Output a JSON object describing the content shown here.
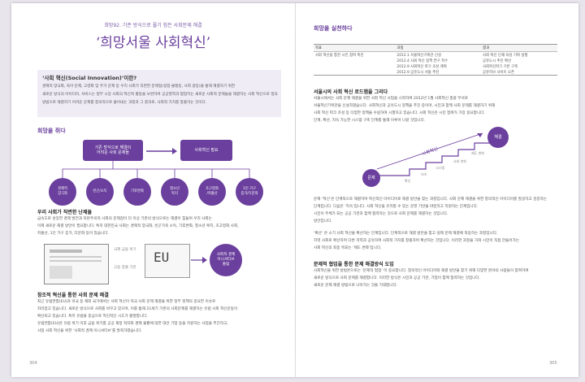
{
  "left_page": {
    "kicker": "희망92. 기존 방식으로 풀기 힘든 사회문제 해결",
    "title": "‘희망서울 사회혁신’",
    "box": {
      "heading": "‘사회 혁신(Social Innovation)’이란?",
      "lines": [
        "경제적 양극화, 육아 문제, 고령화 및 주거 문제 등 우리 사회가 직면한 문제점(실업·불평등, 사회 갈등)을 통해 해결하기 위한",
        "새로운 방식의 아이디어, 서비스는 정부 시장 사회의 혁신적 활동을 보완하며 공공영역과 협업하는 새로운 사회적 문제들을 해결하는 사회 혁신으로 정의한다.",
        "방법으로 해결하기 어려운 문제를 창의적으로 풀어내는 과정과 그 결과로, 사회적 가치를 창출하는 것이다."
      ]
    },
    "section1": "희망을 쥐다",
    "diagram": {
      "left_pill": "기존 방식으로 해결이\n어려운 사회 문제들",
      "right_pill": "사회혁신 필요",
      "circles": [
        "경제적\n양극화",
        "빈곤/소득",
        "기후변화",
        "청소년\n복지",
        "초고령화\n/저출산",
        "1인 가구\n증가/다문화"
      ]
    },
    "sub1": "우리 사회가 직면한 난제들",
    "sub1_lines": [
      "급속도로 성장한 경제 발전과 자본주의적 사회의 문제점이 더 이상 기존의 방식으로는 해결이 힘들며 우리 사회는",
      "이제 새로운 해결 방안이 필요합니다. 특히 대한민국 사회는 경제적 양극화, 빈곤가족 소득, 기후변화, 청소년 복지, 초고령화 사회,",
      "저출산, 1인 가구 증가, 다문화 등이 있습니다."
    ],
    "sketch_labels": [
      "국제 금융 위기",
      "EU",
      "고용 창출 기반"
    ],
    "bigcircle": "사회적 경제\n이니셔티브\n출범",
    "sub2": "창조적 혁신을 통한 사회 문제 해결",
    "sub2_lines": [
      "최근 유럽연합(EU)과 미국 등 해외 국가에서는 사회 혁신이 적극 사회 문제 해결을 위한 정부 정책의 중요한 이슈로",
      "자리잡고 있습니다. 새로운 방식으로 사회를 바꾸고 있으며, 이를 통해 21세기 기존의 사회문제를 해결하는 유럽 사회 혁신운동이",
      "확산되고 있습니다. 특히 유럽을 중심으로 혁신적인 시도가 활발합니다.",
      "유럽연합(EU)은 유럽 위기 이후 금융 위기를 공공 재정 적자와 경제 불황에 대한 대안 기업 등을 지원하는 사업을 추진하고,",
      "사업 사회 혁신을 위한 ‘사회적 경제 이니셔티브’를 발족하였습니다."
    ],
    "page_num": "304"
  },
  "right_page": {
    "section1": "희망을 실천하다",
    "table": {
      "headers": [
        "목표",
        "과정",
        "결과"
      ],
      "rows": [
        [
          "사회 혁신을 통한 시민 참여 촉진",
          "2012.1  서울혁신기획관 신설",
          "사회 혁신 인재 육성 기획 실행"
        ],
        [
          "",
          "2012.4  사회 혁신 정책 연구 착수",
          "공유도시 추진 확산"
        ],
        [
          "",
          "2012.9  사회혁신 파크 조성 계획",
          "사회혁신파크 기반 구축"
        ],
        [
          "",
          "2012.9  공유도시 서울 추진",
          "공유허브 사이트 오픈"
        ]
      ]
    },
    "sub1": "서울시의 사회 혁신 로드맵을 그리다",
    "sub1_lines": [
      "서울시에서는 사회 문제 해결을 위한 사회 혁신 사업을 시작하여 2012년 1월 사회혁신 총괄 부서로",
      "서울혁신기획관을 신설하였습니다. 사회혁신과 공유도시 정책을 추진 중이며, 시민과 함께 사회 문제를 해결하기 위해",
      "사회 혁신 파크 조성 등 다양한 정책을 수립하여 시행하고 있습니다. 사회 혁신은 시민 참여가 가장 중요합니다.",
      "단계, 확산, 지속 가능한 시스템 구축 단계를 통해 이루어 나갈 것입니다."
    ],
    "stair": {
      "top_circle": "해결",
      "bottom_circle": "문제",
      "arrow_label": "사회혁신",
      "steps": [
        "확산",
        "지속",
        "시스템",
        "사회 변화",
        "제도 변화"
      ]
    },
    "sub1b_lines": [
      "문제 ‘혁신’은 단계적으로 해결하며 혁신적인 아이디어로 해결 방안을 찾는 과정입니다. 사회 문제 해결을 위한 창의적인 아이디어를 발굴하고 검증하는",
      "단계입니다. 다음은 ‘지속’입니다. 사회 혁신을 유지할 수 있는 운영 기반을 마련하고 지원하는 단계입니다.",
      "시민이 주체가 되는 공공 기관과 함께 협력하는 것으로 사회 문제를 해결하는 것입니다.",
      "방안입니다."
    ],
    "sub1c_lines": [
      "‘확산’ 은 소기 사회 혁신을 확산하는 단계입니다. 단계적으로 해결 방안을 찾고 실제 문제 해결에 적용하는 과정입니다.",
      "지역 사회로 확산하며 다른 지역과 공유하여 사회적 가치를 창출하며 확산하는 것입니다. 이러한 과정을 거쳐 시민이 직접 만들어가는",
      "사회 혁신의 최종 목표는 ‘제도 변화’입니다."
    ],
    "sub2": "문제적 협업을 통한 문제 해결방식 도입",
    "sub2_lines": [
      "사회혁신을 위한 방법론으로는 ‘문제적 협업’ 이 중요합니다. 창의적인 아이디어와 해결 방안을 찾기 위해 다양한 분야의 사람들이 참여하여",
      "새로운 방식으로 사회 문제를 해결합니다. 이러한 방식은 시민과 공공 기관, 기업이 함께 협력하는 것입니다.",
      "새로운 문제 해결 방법으로 나아가는 것을 기대합니다."
    ],
    "page_num": "305"
  }
}
